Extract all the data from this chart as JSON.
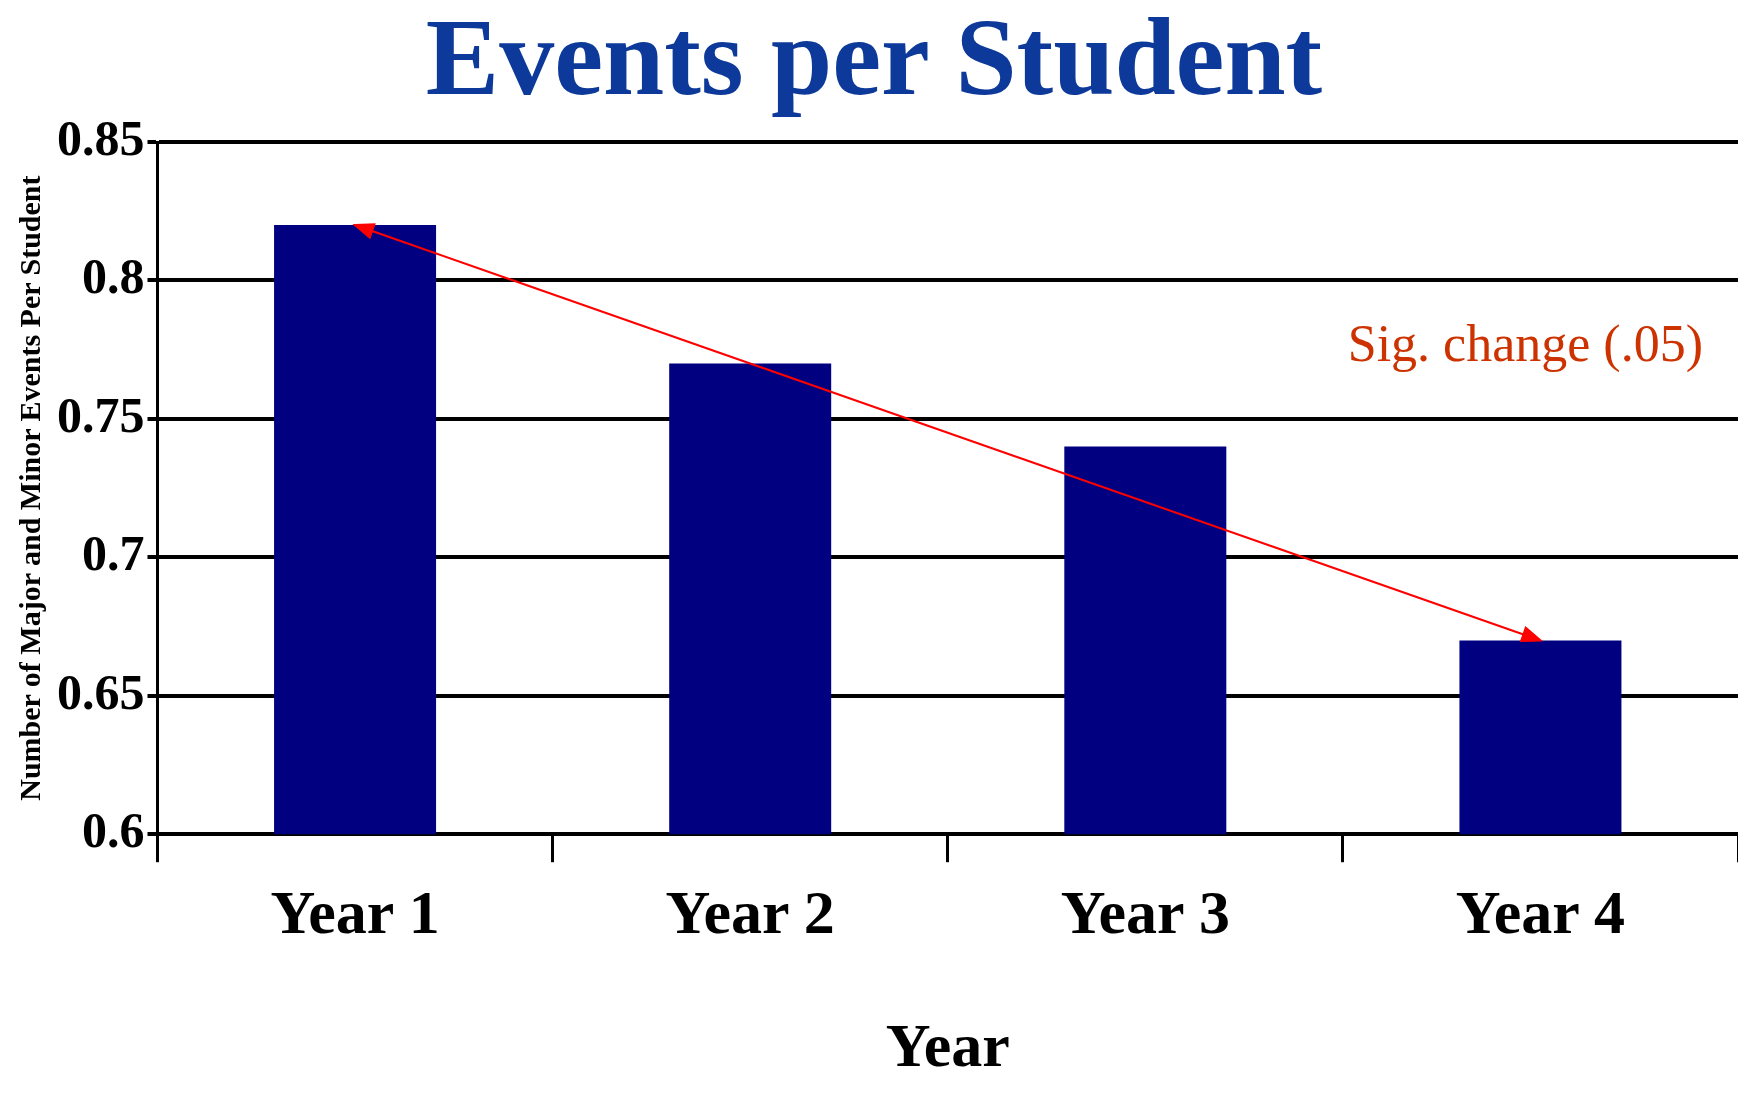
{
  "chart_data": {
    "type": "bar",
    "title": "Events per Student",
    "xlabel": "Year",
    "ylabel": "Number of Major and Minor Events Per Student",
    "categories": [
      "Year 1",
      "Year 2",
      "Year 3",
      "Year 4"
    ],
    "values": [
      0.82,
      0.77,
      0.74,
      0.67
    ],
    "color": "#000080",
    "ylim": [
      0.6,
      0.85
    ],
    "yticks": [
      0.6,
      0.65,
      0.7,
      0.75,
      0.8,
      0.85
    ],
    "grid": "y",
    "legend": false,
    "annotations": [
      "Sig. change (.05)"
    ]
  }
}
